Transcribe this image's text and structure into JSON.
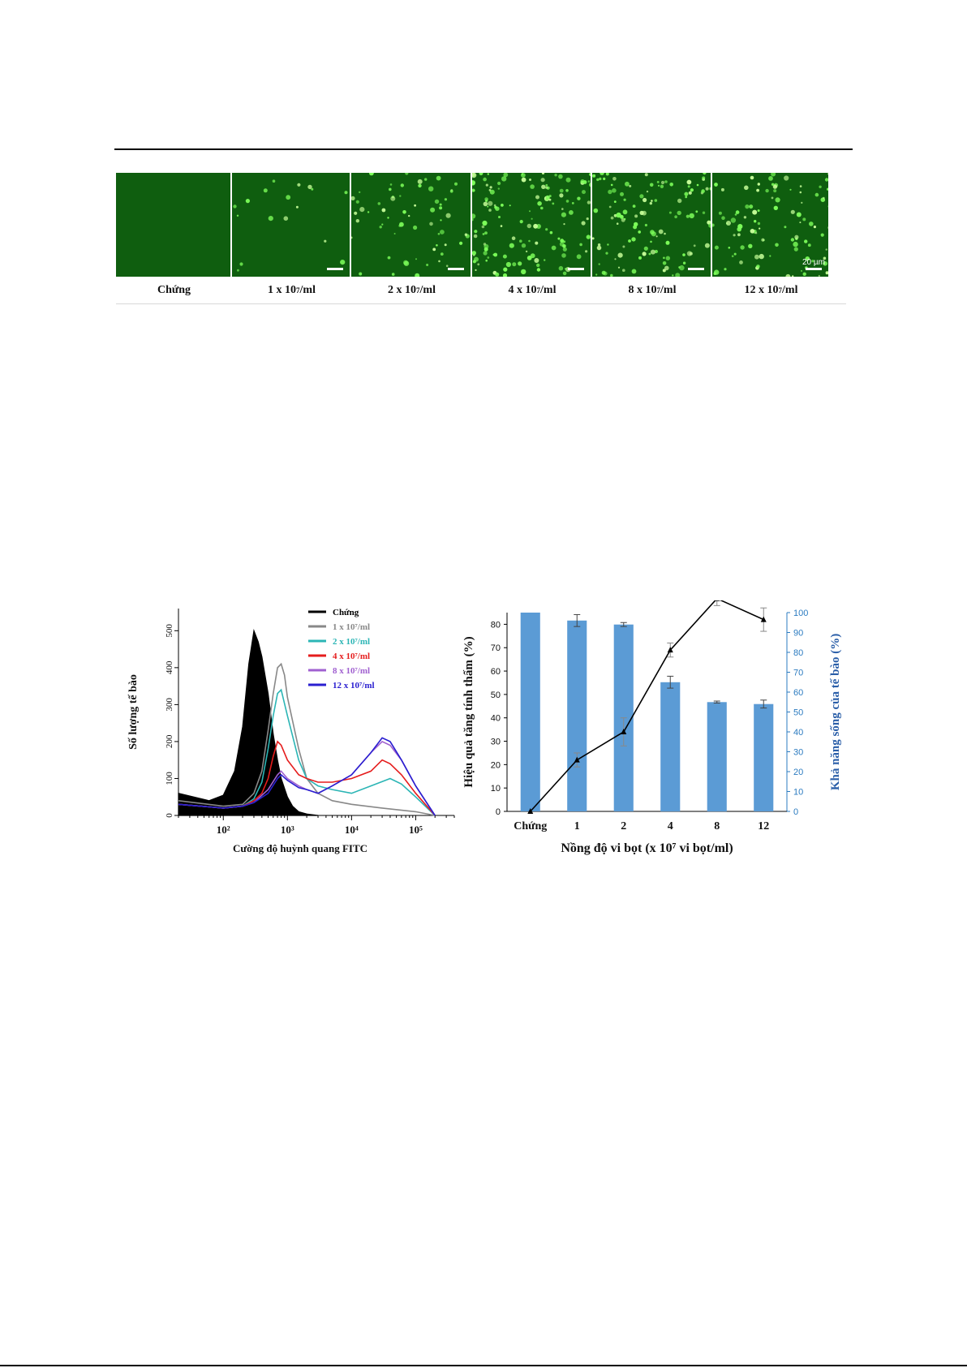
{
  "micrograph_panel": {
    "scale_label": "20 µm",
    "labels": [
      {
        "main": "Chứng",
        "sup": "",
        "tail": ""
      },
      {
        "main": "1 x 10",
        "sup": "7",
        "tail": "/ml"
      },
      {
        "main": "2 x 10",
        "sup": "7",
        "tail": "/ml"
      },
      {
        "main": "4 x 10",
        "sup": "7",
        "tail": "/ml"
      },
      {
        "main": "8 x 10",
        "sup": "7",
        "tail": "/ml"
      },
      {
        "main": "12 x 10",
        "sup": "7",
        "tail": "/ml"
      }
    ],
    "brightness": [
      0.0,
      0.12,
      0.45,
      1.0,
      0.85,
      0.7
    ]
  },
  "chart_data": [
    {
      "type": "line",
      "title": "",
      "xlabel": "Cường độ huỳnh quang FITC",
      "ylabel": "Số lượng tế bào",
      "x_scale": "log",
      "xlim": [
        20,
        400000
      ],
      "ylim": [
        0,
        560
      ],
      "xticks": [
        "10²",
        "10³",
        "10⁴",
        "10⁵"
      ],
      "yticks": [
        0,
        100,
        200,
        300,
        400,
        500
      ],
      "legend": "top-right",
      "series": [
        {
          "name": "Chứng",
          "color": "#000000",
          "filled": true,
          "x": [
            20,
            60,
            100,
            150,
            200,
            250,
            300,
            350,
            400,
            500,
            600,
            700,
            800,
            1000,
            1200,
            1500,
            2000,
            3000
          ],
          "y": [
            60,
            40,
            55,
            120,
            240,
            410,
            500,
            470,
            430,
            330,
            220,
            150,
            100,
            50,
            25,
            10,
            4,
            0
          ]
        },
        {
          "name": "1 x 10⁷/ml",
          "color": "#888888",
          "x": [
            20,
            100,
            200,
            300,
            400,
            500,
            600,
            700,
            800,
            900,
            1000,
            1500,
            2000,
            3000,
            5000,
            10000,
            30000,
            100000,
            200000
          ],
          "y": [
            40,
            25,
            30,
            60,
            120,
            230,
            330,
            400,
            410,
            380,
            320,
            180,
            100,
            60,
            40,
            30,
            20,
            10,
            0
          ]
        },
        {
          "name": "2 x 10⁷/ml",
          "color": "#2bb5b5",
          "x": [
            20,
            100,
            200,
            300,
            400,
            500,
            600,
            700,
            800,
            1000,
            1500,
            2000,
            3000,
            5000,
            10000,
            20000,
            40000,
            60000,
            100000,
            200000
          ],
          "y": [
            30,
            20,
            25,
            45,
            90,
            180,
            270,
            330,
            340,
            270,
            150,
            100,
            80,
            70,
            60,
            80,
            100,
            85,
            50,
            0
          ]
        },
        {
          "name": "4 x 10⁷/ml",
          "color": "#e51c1c",
          "x": [
            20,
            100,
            200,
            300,
            400,
            500,
            600,
            700,
            800,
            1000,
            1500,
            2000,
            3000,
            5000,
            10000,
            20000,
            30000,
            40000,
            60000,
            100000,
            200000
          ],
          "y": [
            30,
            20,
            25,
            40,
            60,
            100,
            160,
            200,
            190,
            150,
            110,
            100,
            90,
            90,
            100,
            120,
            150,
            140,
            110,
            60,
            0
          ]
        },
        {
          "name": "8 x 10⁷/ml",
          "color": "#a060d0",
          "x": [
            20,
            100,
            200,
            300,
            500,
            700,
            800,
            1000,
            1500,
            2000,
            3000,
            5000,
            10000,
            20000,
            30000,
            40000,
            60000,
            100000,
            200000
          ],
          "y": [
            30,
            20,
            25,
            35,
            70,
            110,
            120,
            100,
            80,
            70,
            60,
            80,
            110,
            170,
            200,
            190,
            150,
            80,
            0
          ]
        },
        {
          "name": "12 x 10⁷/ml",
          "color": "#2a1fd0",
          "x": [
            20,
            100,
            200,
            300,
            500,
            700,
            800,
            1000,
            1500,
            2000,
            3000,
            5000,
            10000,
            20000,
            30000,
            40000,
            60000,
            100000,
            200000
          ],
          "y": [
            30,
            20,
            25,
            35,
            60,
            100,
            110,
            95,
            75,
            70,
            60,
            80,
            110,
            170,
            210,
            200,
            150,
            80,
            0
          ]
        }
      ]
    },
    {
      "type": "bar",
      "title": "",
      "xlabel": "Nồng độ vi bọt (x 10⁷ vi bọt/ml)",
      "categories": [
        "Chứng",
        "1",
        "2",
        "4",
        "8",
        "12"
      ],
      "y_left": {
        "label": "Hiệu quả tăng tính thấm (%)",
        "ylim": [
          0,
          85
        ],
        "ticks": [
          0,
          10,
          20,
          30,
          40,
          50,
          60,
          70,
          80
        ]
      },
      "y_right": {
        "label": "Khả năng sống của tế bào (%)",
        "ylim": [
          0,
          100
        ],
        "ticks": [
          0,
          10,
          20,
          30,
          40,
          50,
          60,
          70,
          80,
          90,
          100
        ],
        "color": "#2b7bc0"
      },
      "series": [
        {
          "name": "Khả năng sống của tế bào (%)",
          "axis": "right",
          "kind": "bar",
          "color": "#5b9bd5",
          "values": [
            100,
            96,
            94,
            65,
            55,
            54
          ],
          "errors": [
            0,
            3,
            1,
            3,
            0.5,
            2
          ]
        },
        {
          "name": "Hiệu quả tăng tính thấm (%)",
          "axis": "left",
          "kind": "line",
          "color": "#000000",
          "values": [
            0,
            22,
            34,
            69,
            91,
            82
          ],
          "errors": [
            0,
            3,
            6,
            3,
            3,
            5
          ]
        }
      ]
    }
  ]
}
